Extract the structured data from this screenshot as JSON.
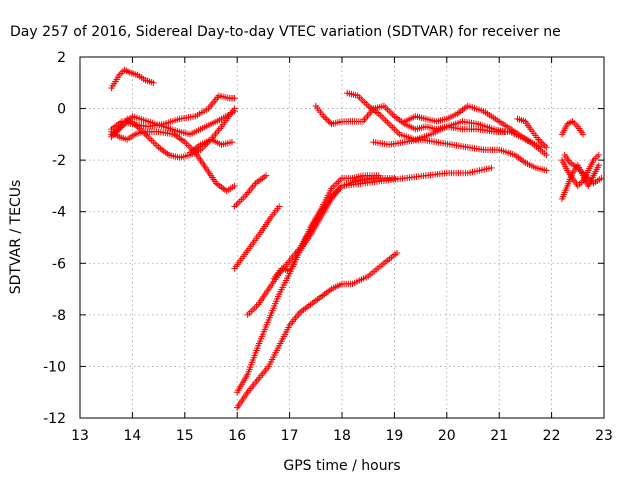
{
  "chart_data": {
    "type": "scatter",
    "title": "Day 257 of 2016, Sidereal Day-to-day VTEC variation (SDTVAR) for receiver ne",
    "xlabel": "GPS time / hours",
    "ylabel": "SDTVAR / TECUs",
    "xlim": [
      13,
      23
    ],
    "ylim": [
      -12,
      2
    ],
    "xticks": [
      13,
      14,
      15,
      16,
      17,
      18,
      19,
      20,
      21,
      22,
      23
    ],
    "yticks": [
      -12,
      -10,
      -8,
      -6,
      -4,
      -2,
      0,
      2
    ],
    "grid": true,
    "marker": "+",
    "color": "#ff0000",
    "series": [
      {
        "x": [
          13.6,
          13.75,
          13.85,
          13.95,
          14.1,
          14.25,
          14.4
        ],
        "y": [
          0.8,
          1.3,
          1.5,
          1.4,
          1.3,
          1.1,
          1.0
        ]
      },
      {
        "x": [
          13.6,
          13.8,
          14.0,
          14.3,
          14.6,
          14.9,
          15.2,
          15.45,
          15.65,
          15.85,
          15.95
        ],
        "y": [
          -0.8,
          -0.5,
          -0.6,
          -0.7,
          -0.6,
          -0.4,
          -0.3,
          0.0,
          0.5,
          0.4,
          0.4
        ]
      },
      {
        "x": [
          13.6,
          13.8,
          14.0,
          14.3,
          14.6,
          14.9,
          15.1,
          15.3,
          15.5,
          15.7,
          15.95
        ],
        "y": [
          -1.0,
          -0.7,
          -0.3,
          -0.5,
          -0.7,
          -0.9,
          -1.0,
          -0.8,
          -0.6,
          -0.4,
          -0.1
        ]
      },
      {
        "x": [
          13.6,
          13.75,
          13.9,
          14.1,
          14.3,
          14.5,
          14.7,
          14.9,
          15.1,
          15.3,
          15.5,
          15.7,
          15.95
        ],
        "y": [
          -1.1,
          -0.8,
          -0.4,
          -0.7,
          -1.1,
          -1.5,
          -1.8,
          -1.9,
          -1.8,
          -1.6,
          -1.2,
          -0.7,
          0.0
        ]
      },
      {
        "x": [
          13.6,
          13.75,
          13.9,
          14.05,
          14.2,
          14.5,
          14.8,
          15.0,
          15.2,
          15.4,
          15.6,
          15.8,
          15.95
        ],
        "y": [
          -0.9,
          -1.1,
          -1.2,
          -1.0,
          -0.9,
          -0.9,
          -1.0,
          -1.3,
          -1.7,
          -2.3,
          -2.9,
          -3.2,
          -3.0
        ]
      },
      {
        "x": [
          15.1,
          15.3,
          15.5,
          15.7,
          15.9
        ],
        "y": [
          -1.7,
          -1.4,
          -1.2,
          -1.4,
          -1.3
        ]
      },
      {
        "x": [
          15.95,
          16.15,
          16.35,
          16.55
        ],
        "y": [
          -3.8,
          -3.4,
          -2.9,
          -2.6
        ]
      },
      {
        "x": [
          15.95,
          16.2,
          16.45,
          16.65,
          16.8
        ],
        "y": [
          -6.2,
          -5.5,
          -4.8,
          -4.2,
          -3.8
        ]
      },
      {
        "x": [
          16.0,
          16.2,
          16.4,
          16.6,
          16.8,
          17.0,
          17.2,
          17.4,
          17.6,
          17.8,
          18.0,
          18.2,
          18.5,
          18.8,
          19.05
        ],
        "y": [
          -11.6,
          -11.0,
          -10.5,
          -10.0,
          -9.2,
          -8.4,
          -7.9,
          -7.6,
          -7.3,
          -7.0,
          -6.8,
          -6.8,
          -6.5,
          -6.0,
          -5.6
        ]
      },
      {
        "x": [
          16.0,
          16.2,
          16.4,
          16.6,
          16.8,
          17.0,
          17.2,
          17.4,
          17.6,
          17.8,
          18.0,
          18.3,
          18.6,
          19.0
        ],
        "y": [
          -11.0,
          -10.3,
          -9.2,
          -8.2,
          -7.2,
          -6.4,
          -5.5,
          -4.9,
          -4.2,
          -3.5,
          -3.0,
          -2.8,
          -2.7,
          -2.7
        ]
      },
      {
        "x": [
          16.2,
          16.4,
          16.6,
          16.8,
          17.0,
          17.2,
          17.4,
          17.6,
          17.8,
          18.0,
          18.4,
          18.8,
          19.2,
          19.6,
          20.0,
          20.4,
          20.85
        ],
        "y": [
          -8.0,
          -7.6,
          -7.0,
          -6.4,
          -5.9,
          -5.4,
          -4.7,
          -4.0,
          -3.4,
          -3.0,
          -2.9,
          -2.8,
          -2.7,
          -2.6,
          -2.5,
          -2.5,
          -2.3
        ]
      },
      {
        "x": [
          16.7,
          16.85,
          17.0,
          17.2,
          17.4,
          17.6,
          17.8,
          18.0,
          18.2,
          18.4,
          18.7
        ],
        "y": [
          -6.6,
          -6.2,
          -6.3,
          -5.5,
          -4.6,
          -3.9,
          -3.1,
          -2.7,
          -2.7,
          -2.6,
          -2.6
        ]
      },
      {
        "x": [
          17.5,
          17.65,
          17.8,
          18.0,
          18.2,
          18.4,
          18.6,
          18.8,
          19.0,
          19.2,
          19.4,
          19.6,
          19.8,
          20.0,
          20.3,
          20.6,
          20.9,
          21.2,
          21.5,
          21.8
        ],
        "y": [
          0.1,
          -0.3,
          -0.6,
          -0.5,
          -0.5,
          -0.5,
          0.0,
          0.1,
          -0.3,
          -0.6,
          -0.8,
          -0.7,
          -0.8,
          -0.7,
          -0.8,
          -0.8,
          -0.9,
          -0.9,
          -1.2,
          -1.5
        ]
      },
      {
        "x": [
          18.1,
          18.3,
          18.5,
          18.7,
          18.9,
          19.1,
          19.4,
          19.7,
          20.0,
          20.3,
          20.6,
          20.9,
          21.1
        ],
        "y": [
          0.6,
          0.5,
          0.1,
          -0.2,
          -0.6,
          -1.0,
          -1.2,
          -1.0,
          -0.7,
          -0.5,
          -0.6,
          -0.8,
          -0.9
        ]
      },
      {
        "x": [
          19.2,
          19.4,
          19.6,
          19.8,
          20.0,
          20.2,
          20.4,
          20.7,
          21.0,
          21.3,
          21.6,
          21.9
        ],
        "y": [
          -0.5,
          -0.3,
          -0.4,
          -0.5,
          -0.4,
          -0.2,
          0.1,
          -0.1,
          -0.5,
          -0.9,
          -1.3,
          -1.8
        ]
      },
      {
        "x": [
          18.6,
          18.9,
          19.2,
          19.5,
          19.8,
          20.1,
          20.4,
          20.7,
          21.0,
          21.3,
          21.5,
          21.7,
          21.9
        ],
        "y": [
          -1.3,
          -1.4,
          -1.3,
          -1.2,
          -1.3,
          -1.4,
          -1.5,
          -1.6,
          -1.6,
          -1.8,
          -2.1,
          -2.3,
          -2.4
        ]
      },
      {
        "x": [
          21.35,
          21.5,
          21.6,
          21.75,
          21.9
        ],
        "y": [
          -0.4,
          -0.5,
          -0.8,
          -1.2,
          -1.5
        ]
      },
      {
        "x": [
          22.2,
          22.3,
          22.4,
          22.5,
          22.6
        ],
        "y": [
          -1.0,
          -0.6,
          -0.5,
          -0.7,
          -1.0
        ]
      },
      {
        "x": [
          22.2,
          22.3,
          22.4,
          22.5,
          22.6,
          22.7,
          22.8,
          22.9
        ],
        "y": [
          -3.5,
          -3.0,
          -2.5,
          -2.2,
          -2.6,
          -3.0,
          -2.6,
          -2.2
        ]
      },
      {
        "x": [
          22.2,
          22.3,
          22.4,
          22.5,
          22.6,
          22.7,
          22.8,
          22.9
        ],
        "y": [
          -2.0,
          -2.4,
          -2.7,
          -3.0,
          -2.8,
          -2.4,
          -2.0,
          -1.8
        ]
      },
      {
        "x": [
          22.25,
          22.35,
          22.5,
          22.65,
          22.8,
          22.95
        ],
        "y": [
          -1.8,
          -2.1,
          -2.3,
          -2.6,
          -2.9,
          -2.7
        ]
      }
    ]
  }
}
